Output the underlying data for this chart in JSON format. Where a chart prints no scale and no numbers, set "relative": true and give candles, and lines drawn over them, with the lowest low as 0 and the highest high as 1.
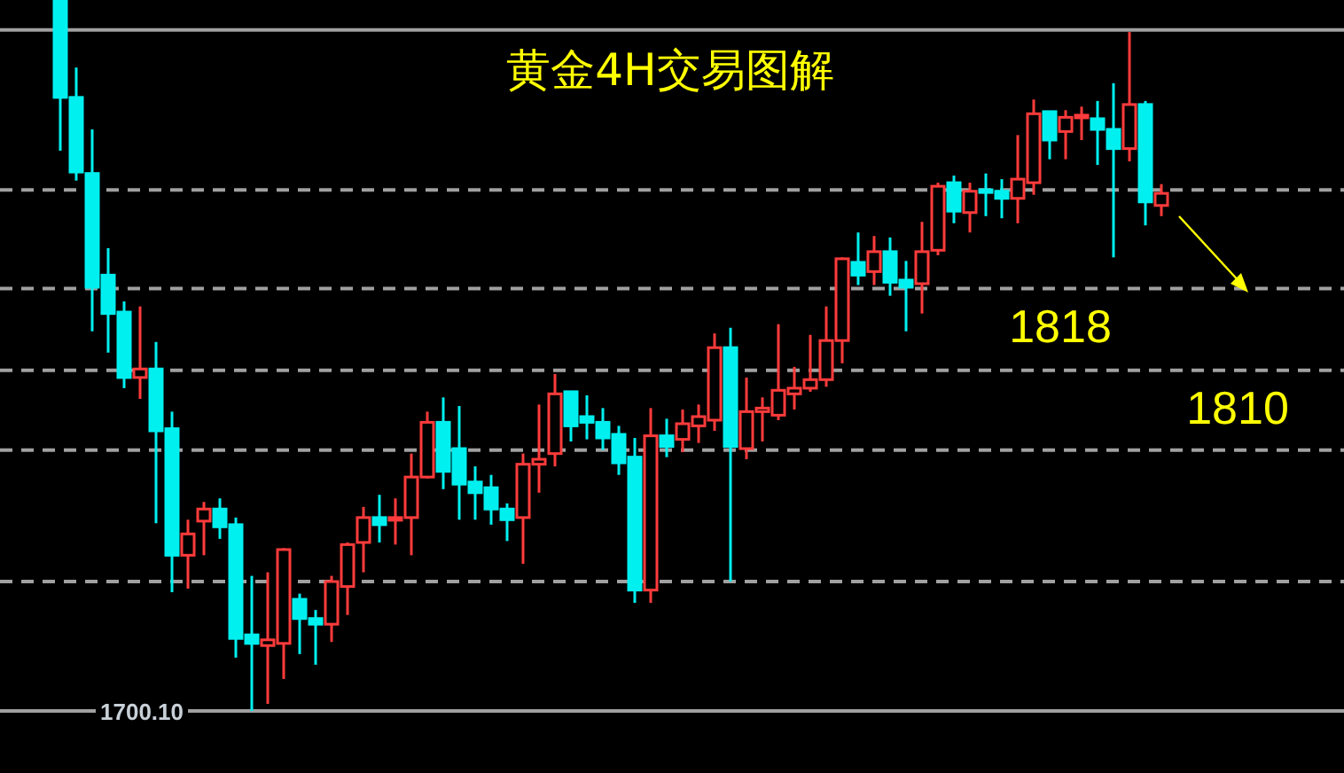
{
  "chart_data": {
    "type": "candlestick",
    "title": "黄金4H交易图解",
    "relative": true,
    "categories": [
      null,
      null,
      null,
      null,
      null,
      null,
      null,
      null,
      null,
      null,
      null,
      null,
      null,
      null,
      null,
      null,
      null,
      null,
      null,
      null,
      null,
      null,
      null,
      null,
      null,
      null,
      null,
      null,
      null,
      null,
      null,
      null,
      null,
      null,
      null,
      null,
      null,
      null,
      null,
      null,
      null,
      null,
      null,
      null,
      null,
      null,
      null,
      null,
      null,
      null,
      null,
      null,
      null,
      null,
      null,
      null,
      null,
      null,
      null,
      null,
      null,
      null,
      null,
      null,
      null,
      null,
      null,
      null,
      null,
      null
    ],
    "ohlc": [
      [
        1.0,
        1.0,
        0.788,
        0.863
      ],
      [
        0.863,
        0.905,
        0.746,
        0.758
      ],
      [
        0.756,
        0.818,
        0.534,
        0.596
      ],
      [
        0.613,
        0.651,
        0.504,
        0.559
      ],
      [
        0.561,
        0.576,
        0.454,
        0.469
      ],
      [
        0.469,
        0.569,
        0.439,
        0.481
      ],
      [
        0.481,
        0.519,
        0.264,
        0.394
      ],
      [
        0.397,
        0.421,
        0.167,
        0.219
      ],
      [
        0.219,
        0.269,
        0.172,
        0.249
      ],
      [
        0.267,
        0.294,
        0.219,
        0.284
      ],
      [
        0.284,
        0.299,
        0.242,
        0.259
      ],
      [
        0.262,
        0.272,
        0.075,
        0.102
      ],
      [
        0.107,
        0.19,
        0,
        0.095
      ],
      [
        0.092,
        0.195,
        0.01,
        0.1
      ],
      [
        0.095,
        0.229,
        0.045,
        0.227
      ],
      [
        0.157,
        0.165,
        0.08,
        0.13
      ],
      [
        0.13,
        0.142,
        0.065,
        0.122
      ],
      [
        0.122,
        0.19,
        0.097,
        0.182
      ],
      [
        0.175,
        0.237,
        0.135,
        0.234
      ],
      [
        0.237,
        0.287,
        0.195,
        0.272
      ],
      [
        0.272,
        0.304,
        0.237,
        0.262
      ],
      [
        0.269,
        0.299,
        0.234,
        0.272
      ],
      [
        0.272,
        0.362,
        0.219,
        0.329
      ],
      [
        0.329,
        0.421,
        0.327,
        0.406
      ],
      [
        0.406,
        0.441,
        0.312,
        0.337
      ],
      [
        0.369,
        0.429,
        0.269,
        0.319
      ],
      [
        0.322,
        0.344,
        0.269,
        0.307
      ],
      [
        0.314,
        0.332,
        0.262,
        0.284
      ],
      [
        0.284,
        0.292,
        0.239,
        0.269
      ],
      [
        0.272,
        0.362,
        0.207,
        0.347
      ],
      [
        0.347,
        0.431,
        0.307,
        0.354
      ],
      [
        0.362,
        0.474,
        0.344,
        0.446
      ],
      [
        0.449,
        0.449,
        0.379,
        0.401
      ],
      [
        0.414,
        0.444,
        0.382,
        0.406
      ],
      [
        0.406,
        0.426,
        0.367,
        0.384
      ],
      [
        0.389,
        0.401,
        0.332,
        0.349
      ],
      [
        0.357,
        0.384,
        0.152,
        0.17
      ],
      [
        0.17,
        0.426,
        0.152,
        0.387
      ],
      [
        0.387,
        0.411,
        0.357,
        0.372
      ],
      [
        0.382,
        0.424,
        0.364,
        0.404
      ],
      [
        0.401,
        0.431,
        0.377,
        0.414
      ],
      [
        0.409,
        0.531,
        0.394,
        0.511
      ],
      [
        0.511,
        0.539,
        0.182,
        0.372
      ],
      [
        0.369,
        0.469,
        0.354,
        0.421
      ],
      [
        0.421,
        0.441,
        0.379,
        0.426
      ],
      [
        0.416,
        0.544,
        0.409,
        0.451
      ],
      [
        0.446,
        0.484,
        0.424,
        0.454
      ],
      [
        0.454,
        0.529,
        0.449,
        0.466
      ],
      [
        0.466,
        0.569,
        0.456,
        0.521
      ],
      [
        0.521,
        0.638,
        0.489,
        0.636
      ],
      [
        0.631,
        0.673,
        0.599,
        0.613
      ],
      [
        0.618,
        0.668,
        0.599,
        0.646
      ],
      [
        0.646,
        0.666,
        0.584,
        0.603
      ],
      [
        0.606,
        0.633,
        0.534,
        0.596
      ],
      [
        0.601,
        0.688,
        0.559,
        0.646
      ],
      [
        0.648,
        0.743,
        0.641,
        0.738
      ],
      [
        0.743,
        0.753,
        0.686,
        0.703
      ],
      [
        0.701,
        0.743,
        0.673,
        0.731
      ],
      [
        0.733,
        0.756,
        0.696,
        0.731
      ],
      [
        0.731,
        0.748,
        0.693,
        0.721
      ],
      [
        0.721,
        0.81,
        0.686,
        0.748
      ],
      [
        0.743,
        0.86,
        0.726,
        0.84
      ],
      [
        0.843,
        0.843,
        0.776,
        0.803
      ],
      [
        0.815,
        0.845,
        0.776,
        0.835
      ],
      [
        0.835,
        0.85,
        0.803,
        0.838
      ],
      [
        0.833,
        0.858,
        0.768,
        0.818
      ],
      [
        0.818,
        0.883,
        0.638,
        0.791
      ],
      [
        0.791,
        0.955,
        0.773,
        0.853
      ],
      [
        0.853,
        0.858,
        0.683,
        0.716
      ],
      [
        0.711,
        0.741,
        0.696,
        0.728
      ]
    ],
    "ref_lines": [
      {
        "axis": "y",
        "value": 0.958,
        "line_style": "solid",
        "color": "#a0a0a0"
      },
      {
        "axis": "y",
        "value": 0.733,
        "line_style": "dashed",
        "color": "#a0a0a0"
      },
      {
        "axis": "y",
        "value": 0.594,
        "line_style": "dashed",
        "color": "#a0a0a0"
      },
      {
        "axis": "y",
        "value": 0.479,
        "line_style": "dashed",
        "color": "#a0a0a0"
      },
      {
        "axis": "y",
        "value": 0.367,
        "line_style": "dashed",
        "color": "#a0a0a0"
      },
      {
        "axis": "y",
        "value": 0.182,
        "line_style": "dashed",
        "color": "#a0a0a0"
      },
      {
        "axis": "y",
        "value": 0,
        "line_style": "solid",
        "color": "#a0a0a0"
      }
    ],
    "annotations": [
      "1818",
      "1810",
      "1700.10"
    ]
  }
}
